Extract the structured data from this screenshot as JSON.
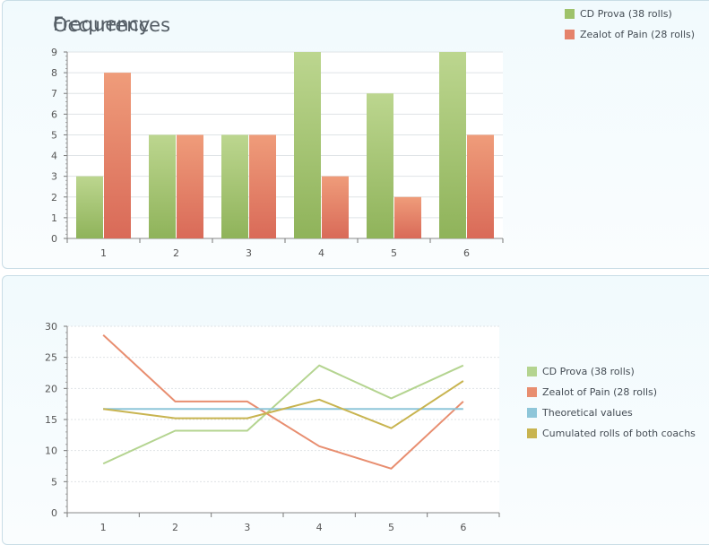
{
  "occurrences": {
    "title": "Occurrences",
    "legend": [
      {
        "label": "CD Prova (38 rolls)",
        "color": "#9ec26a"
      },
      {
        "label": "Zealot of Pain (28 rolls)",
        "color": "#e5826a"
      }
    ]
  },
  "frequency": {
    "title": "Frequency",
    "legend": [
      {
        "label": "CD Prova (38 rolls)",
        "color": "#b4d490"
      },
      {
        "label": "Zealot of Pain (28 rolls)",
        "color": "#e88e70"
      },
      {
        "label": "Theoretical values",
        "color": "#8ec6d9"
      },
      {
        "label": "Cumulated rolls of both coachs",
        "color": "#c8b450"
      }
    ]
  },
  "chart_data": [
    {
      "type": "bar",
      "title": "Occurrences",
      "categories": [
        "1",
        "2",
        "3",
        "4",
        "5",
        "6"
      ],
      "ylim": [
        0,
        9
      ],
      "yticks": [
        0,
        1,
        2,
        3,
        4,
        5,
        6,
        7,
        8,
        9
      ],
      "grid": true,
      "legend_position": "top-right",
      "series": [
        {
          "name": "CD Prova (38 rolls)",
          "values": [
            3,
            5,
            5,
            9,
            7,
            9
          ],
          "color_top": "#bcd68f",
          "color_bottom": "#8fb35a"
        },
        {
          "name": "Zealot of Pain (28 rolls)",
          "values": [
            8,
            5,
            5,
            3,
            2,
            5
          ],
          "color_top": "#ef9c7a",
          "color_bottom": "#d96a58"
        }
      ]
    },
    {
      "type": "line",
      "title": "Frequency",
      "categories": [
        "1",
        "2",
        "3",
        "4",
        "5",
        "6"
      ],
      "ylim": [
        0,
        30
      ],
      "yticks": [
        0,
        5,
        10,
        15,
        20,
        25,
        30
      ],
      "grid": true,
      "legend_position": "right",
      "series": [
        {
          "name": "CD Prova (38 rolls)",
          "values": [
            7.9,
            13.2,
            13.2,
            23.7,
            18.4,
            23.7
          ],
          "color": "#b4d490"
        },
        {
          "name": "Zealot of Pain (28 rolls)",
          "values": [
            28.6,
            17.9,
            17.9,
            10.7,
            7.1,
            17.9
          ],
          "color": "#e88e70"
        },
        {
          "name": "Theoretical values",
          "values": [
            16.7,
            16.7,
            16.7,
            16.7,
            16.7,
            16.7
          ],
          "color": "#8ec6d9"
        },
        {
          "name": "Cumulated rolls of both coachs",
          "values": [
            16.7,
            15.2,
            15.2,
            18.2,
            13.6,
            21.2
          ],
          "color": "#c8b450"
        }
      ]
    }
  ]
}
